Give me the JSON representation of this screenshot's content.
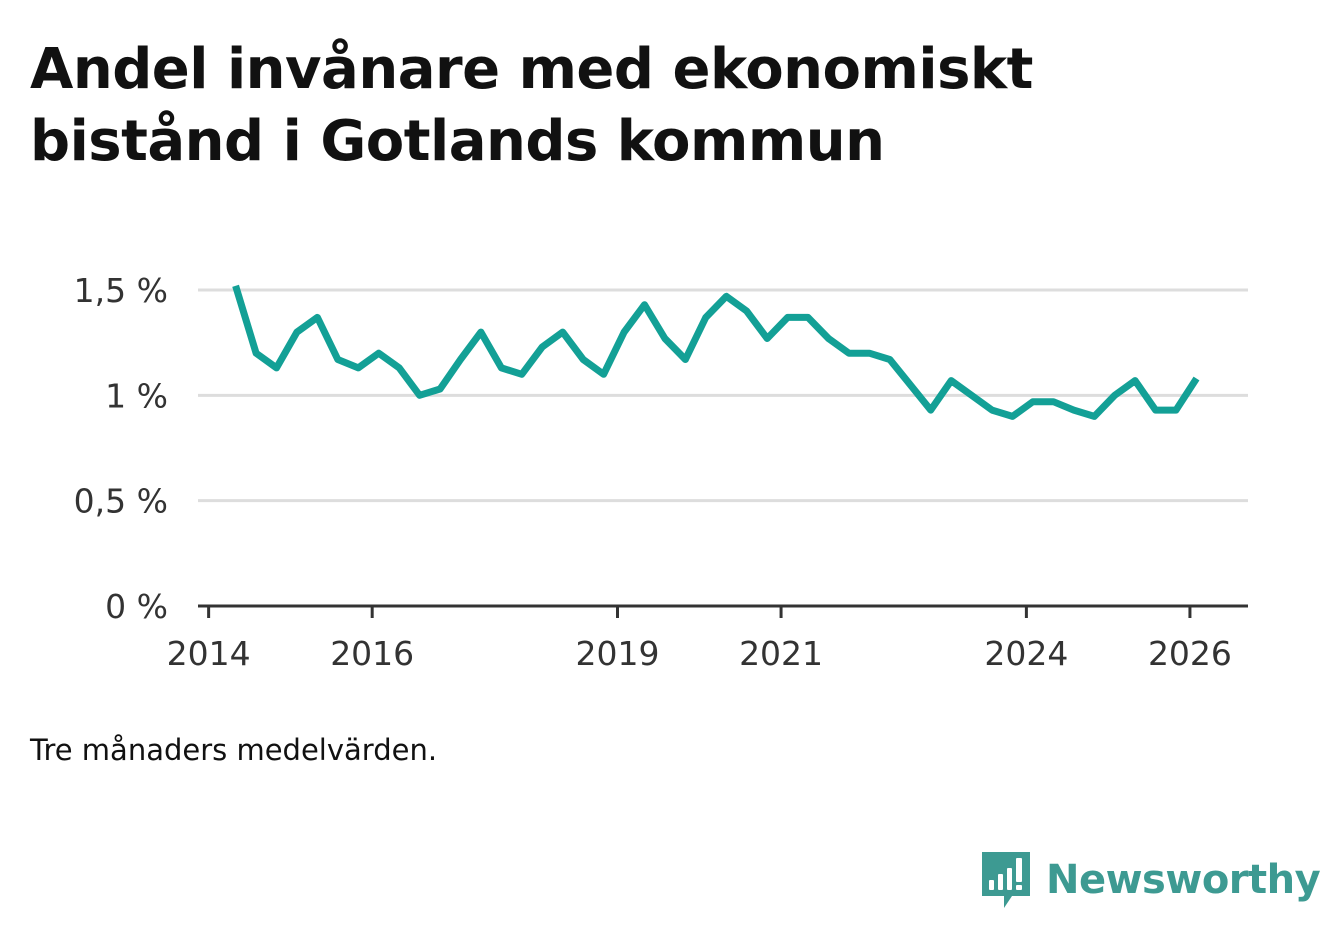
{
  "title": "Andel invånare med ekonomiskt bistånd i Gotlands kommun",
  "footnote": "Tre månaders medelvärden.",
  "brand": {
    "name": "Newsworthy",
    "icon": "newsworthy-logo-icon",
    "color": "#3d9a92"
  },
  "colors": {
    "line": "#13a096",
    "grid": "#dddddd",
    "axis": "#333333"
  },
  "chart_data": {
    "type": "line",
    "title": "Andel invånare med ekonomiskt bistånd i Gotlands kommun",
    "xlabel": "",
    "ylabel": "",
    "xlim": [
      2013.87,
      2026.71
    ],
    "ylim": [
      0,
      1.5
    ],
    "grid": true,
    "x_ticks": [
      2014,
      2016,
      2019,
      2021,
      2024,
      2026
    ],
    "x_tick_labels": [
      "2014",
      "2016",
      "2019",
      "2021",
      "2024",
      "2026"
    ],
    "y_ticks": [
      0,
      0.5,
      1,
      1.5
    ],
    "y_tick_labels": [
      "0 %",
      "0,5 %",
      "1 %",
      "1,5 %"
    ],
    "series": [
      {
        "name": "Andel invånare med ekonomiskt bistånd",
        "x": [
          2014.33,
          2014.58,
          2014.83,
          2015.08,
          2015.33,
          2015.58,
          2015.83,
          2016.08,
          2016.33,
          2016.58,
          2016.83,
          2017.08,
          2017.33,
          2017.58,
          2017.83,
          2018.08,
          2018.33,
          2018.58,
          2018.83,
          2019.08,
          2019.33,
          2019.58,
          2019.83,
          2020.08,
          2020.33,
          2020.58,
          2020.83,
          2021.08,
          2021.33,
          2021.58,
          2021.83,
          2022.08,
          2022.33,
          2022.58,
          2022.83,
          2023.08,
          2023.33,
          2023.58,
          2023.83,
          2024.08,
          2024.33,
          2024.58,
          2024.83,
          2025.08,
          2025.33,
          2025.58,
          2025.83,
          2026.08
        ],
        "values": [
          1.52,
          1.2,
          1.13,
          1.3,
          1.37,
          1.17,
          1.13,
          1.2,
          1.13,
          1.0,
          1.03,
          1.17,
          1.3,
          1.13,
          1.1,
          1.23,
          1.3,
          1.17,
          1.1,
          1.3,
          1.43,
          1.27,
          1.17,
          1.37,
          1.47,
          1.4,
          1.27,
          1.37,
          1.37,
          1.27,
          1.2,
          1.2,
          1.17,
          1.05,
          0.93,
          1.07,
          1.0,
          0.93,
          0.9,
          0.97,
          0.97,
          0.93,
          0.9,
          1.0,
          1.07,
          0.93,
          0.93,
          1.08
        ]
      }
    ]
  }
}
